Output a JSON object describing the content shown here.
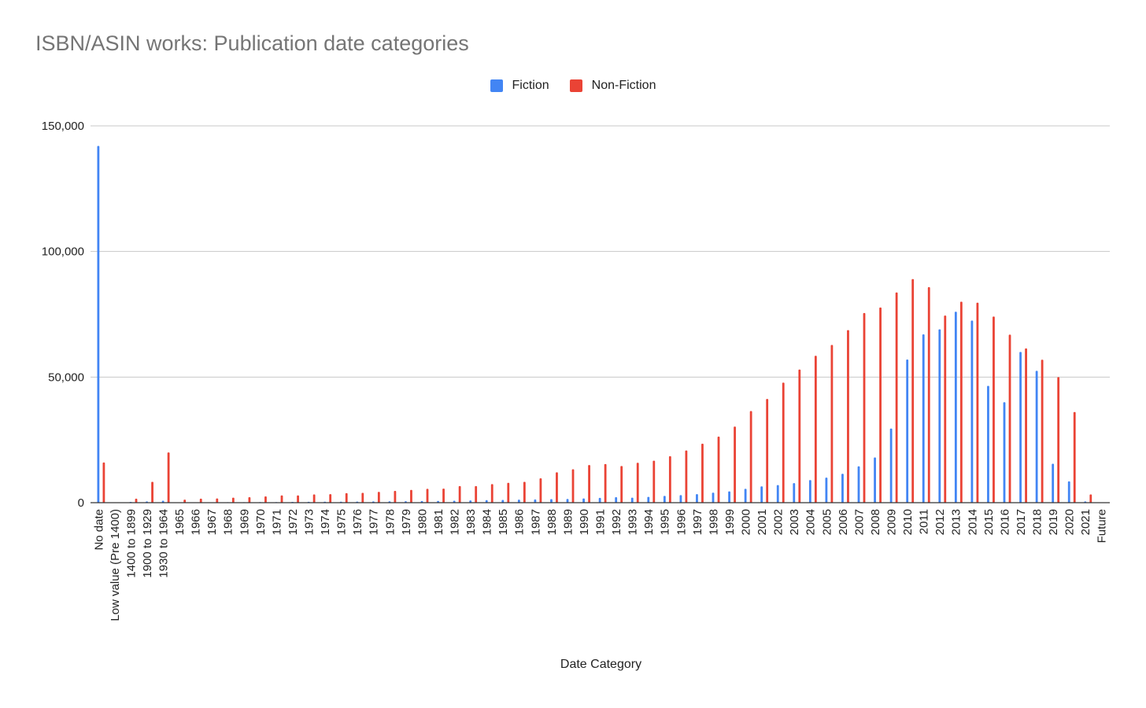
{
  "chart_data": {
    "type": "bar",
    "title": "ISBN/ASIN works: Publication date categories",
    "xlabel": "Date Category",
    "ylabel": "",
    "ylim": [
      0,
      150000
    ],
    "yticks": [
      0,
      50000,
      100000,
      150000
    ],
    "ytick_labels": [
      "0",
      "50,000",
      "100,000",
      "150,000"
    ],
    "legend_position": "top-center",
    "grid": true,
    "categories": [
      "No date",
      "Low value (Pre 1400)",
      "1400 to 1899",
      "1900 to 1929",
      "1930 to 1964",
      "1965",
      "1966",
      "1967",
      "1968",
      "1969",
      "1970",
      "1971",
      "1972",
      "1973",
      "1974",
      "1975",
      "1976",
      "1977",
      "1978",
      "1979",
      "1980",
      "1981",
      "1982",
      "1983",
      "1984",
      "1985",
      "1986",
      "1987",
      "1988",
      "1989",
      "1990",
      "1991",
      "1992",
      "1993",
      "1994",
      "1995",
      "1996",
      "1997",
      "1998",
      "1999",
      "2000",
      "2001",
      "2002",
      "2003",
      "2004",
      "2005",
      "2006",
      "2007",
      "2008",
      "2009",
      "2010",
      "2011",
      "2012",
      "2013",
      "2014",
      "2015",
      "2016",
      "2017",
      "2018",
      "2019",
      "2020",
      "2021",
      "Future"
    ],
    "series": [
      {
        "name": "Fiction",
        "color": "#4285f4",
        "values": [
          142000,
          100,
          300,
          500,
          800,
          100,
          150,
          150,
          200,
          200,
          250,
          250,
          300,
          350,
          400,
          400,
          450,
          500,
          550,
          600,
          650,
          700,
          800,
          900,
          1000,
          1100,
          1200,
          1300,
          1400,
          1500,
          1700,
          1900,
          2200,
          2000,
          2300,
          2700,
          3000,
          3400,
          4000,
          4500,
          5500,
          6500,
          7000,
          7800,
          9000,
          10000,
          11500,
          14500,
          18000,
          29500,
          57000,
          67000,
          69000,
          76000,
          72500,
          46500,
          40000,
          60000,
          52500,
          15500,
          8500,
          500,
          100
        ]
      },
      {
        "name": "Non-Fiction",
        "color": "#ea4335",
        "values": [
          16000,
          100,
          1600,
          8300,
          20000,
          1200,
          1600,
          1700,
          2000,
          2200,
          2500,
          2900,
          2900,
          3300,
          3400,
          3800,
          3900,
          4300,
          4700,
          5100,
          5500,
          5600,
          6600,
          6600,
          7400,
          7900,
          8300,
          9700,
          12100,
          13300,
          15000,
          15400,
          14600,
          15900,
          16700,
          18500,
          20800,
          23500,
          26300,
          30300,
          36500,
          41300,
          47800,
          53000,
          58500,
          62800,
          68700,
          75500,
          77700,
          83700,
          89000,
          85800,
          74500,
          80000,
          79600,
          74100,
          66900,
          61400,
          56900,
          50000,
          36100,
          3300,
          100
        ]
      }
    ]
  }
}
